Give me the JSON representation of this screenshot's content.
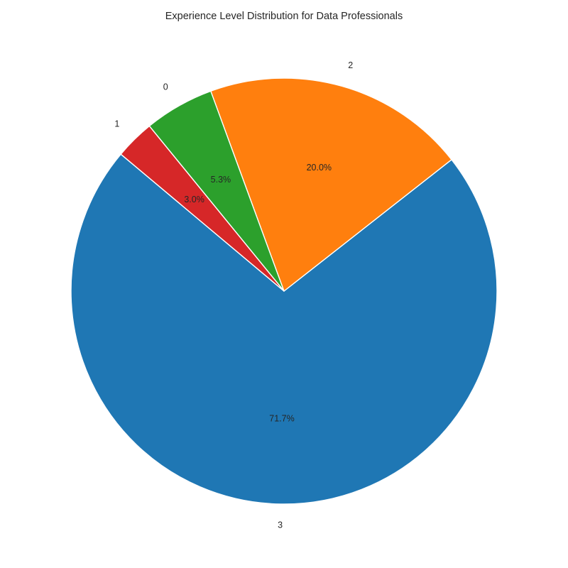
{
  "chart_data": {
    "type": "pie",
    "title": "Experience Level Distribution for Data Professionals",
    "categories": [
      "3",
      "2",
      "0",
      "1"
    ],
    "values": [
      71.7,
      20.0,
      5.3,
      3.0
    ],
    "percent_labels": [
      "71.7%",
      "20.0%",
      "5.3%",
      "3.0%"
    ],
    "colors": [
      "#1f77b4",
      "#ff7f0e",
      "#2ca02c",
      "#d62728"
    ],
    "start_angle_deg": 140,
    "direction": "counterclockwise",
    "legend": "none"
  }
}
